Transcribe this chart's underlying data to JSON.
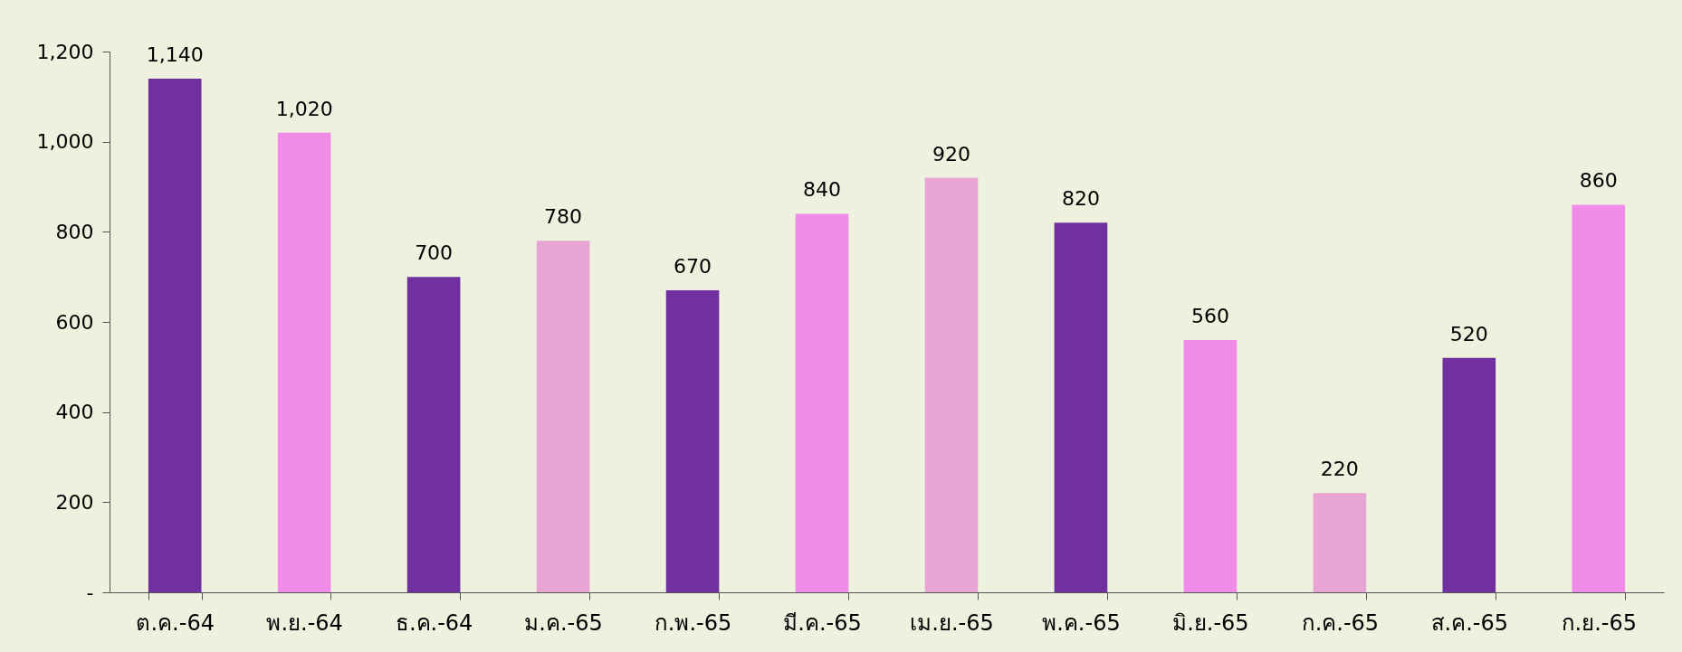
{
  "chart_data": {
    "type": "bar",
    "categories": [
      "ต.ค.-64",
      "พ.ย.-64",
      "ธ.ค.-64",
      "ม.ค.-65",
      "ก.พ.-65",
      "มี.ค.-65",
      "เม.ย.-65",
      "พ.ค.-65",
      "มิ.ย.-65",
      "ก.ค.-65",
      "ส.ค.-65",
      "ก.ย.-65"
    ],
    "values": [
      1140,
      1020,
      700,
      780,
      670,
      840,
      920,
      820,
      560,
      220,
      520,
      860
    ],
    "value_labels": [
      "1,140",
      "1,020",
      "700",
      "780",
      "670",
      "840",
      "920",
      "820",
      "560",
      "220",
      "520",
      "860"
    ],
    "colors": [
      "#7030a0",
      "#f08ce8",
      "#7030a0",
      "#e8a5d4",
      "#7030a0",
      "#f08ce8",
      "#e8a5d4",
      "#7030a0",
      "#f08ce8",
      "#e8a5d4",
      "#7030a0",
      "#f08ce8"
    ],
    "ylim": [
      0,
      1200
    ],
    "yticks": [
      {
        "value": 0,
        "label": "-"
      },
      200,
      400,
      600,
      800,
      {
        "value": 1000,
        "label": "1,000"
      },
      {
        "value": 1200,
        "label": "1,200"
      }
    ],
    "grid": false
  }
}
